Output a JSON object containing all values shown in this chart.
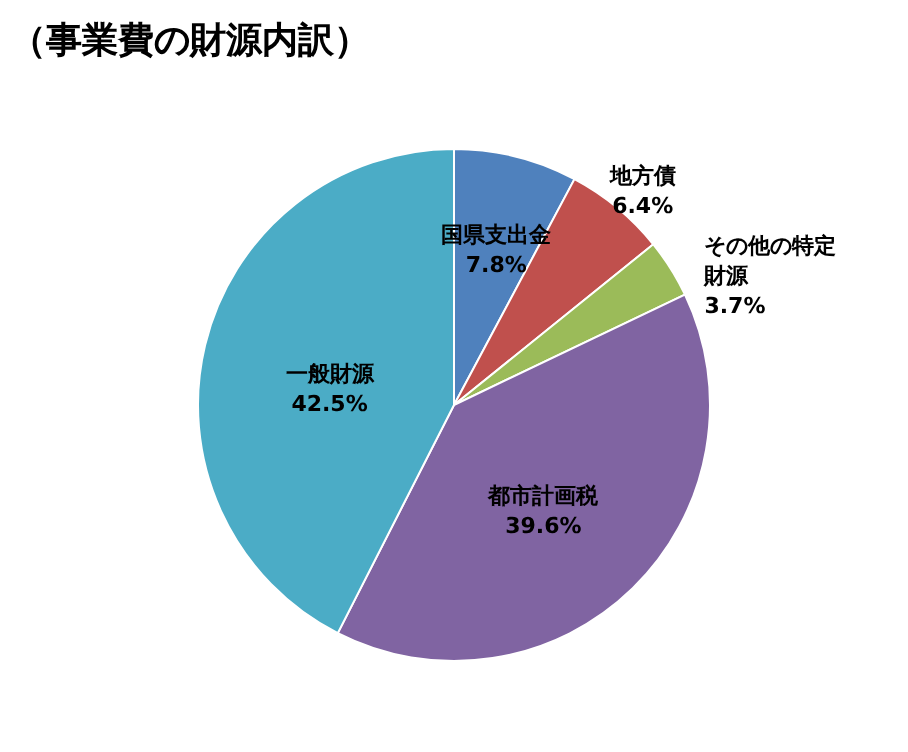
{
  "chart_data": {
    "type": "pie",
    "title": "（事業費の財源内訳）",
    "categories": [
      "国県支出金",
      "地方債",
      "その他の特定財源",
      "都市計画税",
      "一般財源"
    ],
    "values": [
      7.8,
      6.4,
      3.7,
      39.6,
      42.5
    ],
    "colors": [
      "#4f81bd",
      "#c0504d",
      "#9bbb59",
      "#8064a2",
      "#4bacc6"
    ],
    "value_labels": [
      "7.8%",
      "6.4%",
      "3.7%",
      "39.6%",
      "42.5%"
    ],
    "legend": false
  }
}
